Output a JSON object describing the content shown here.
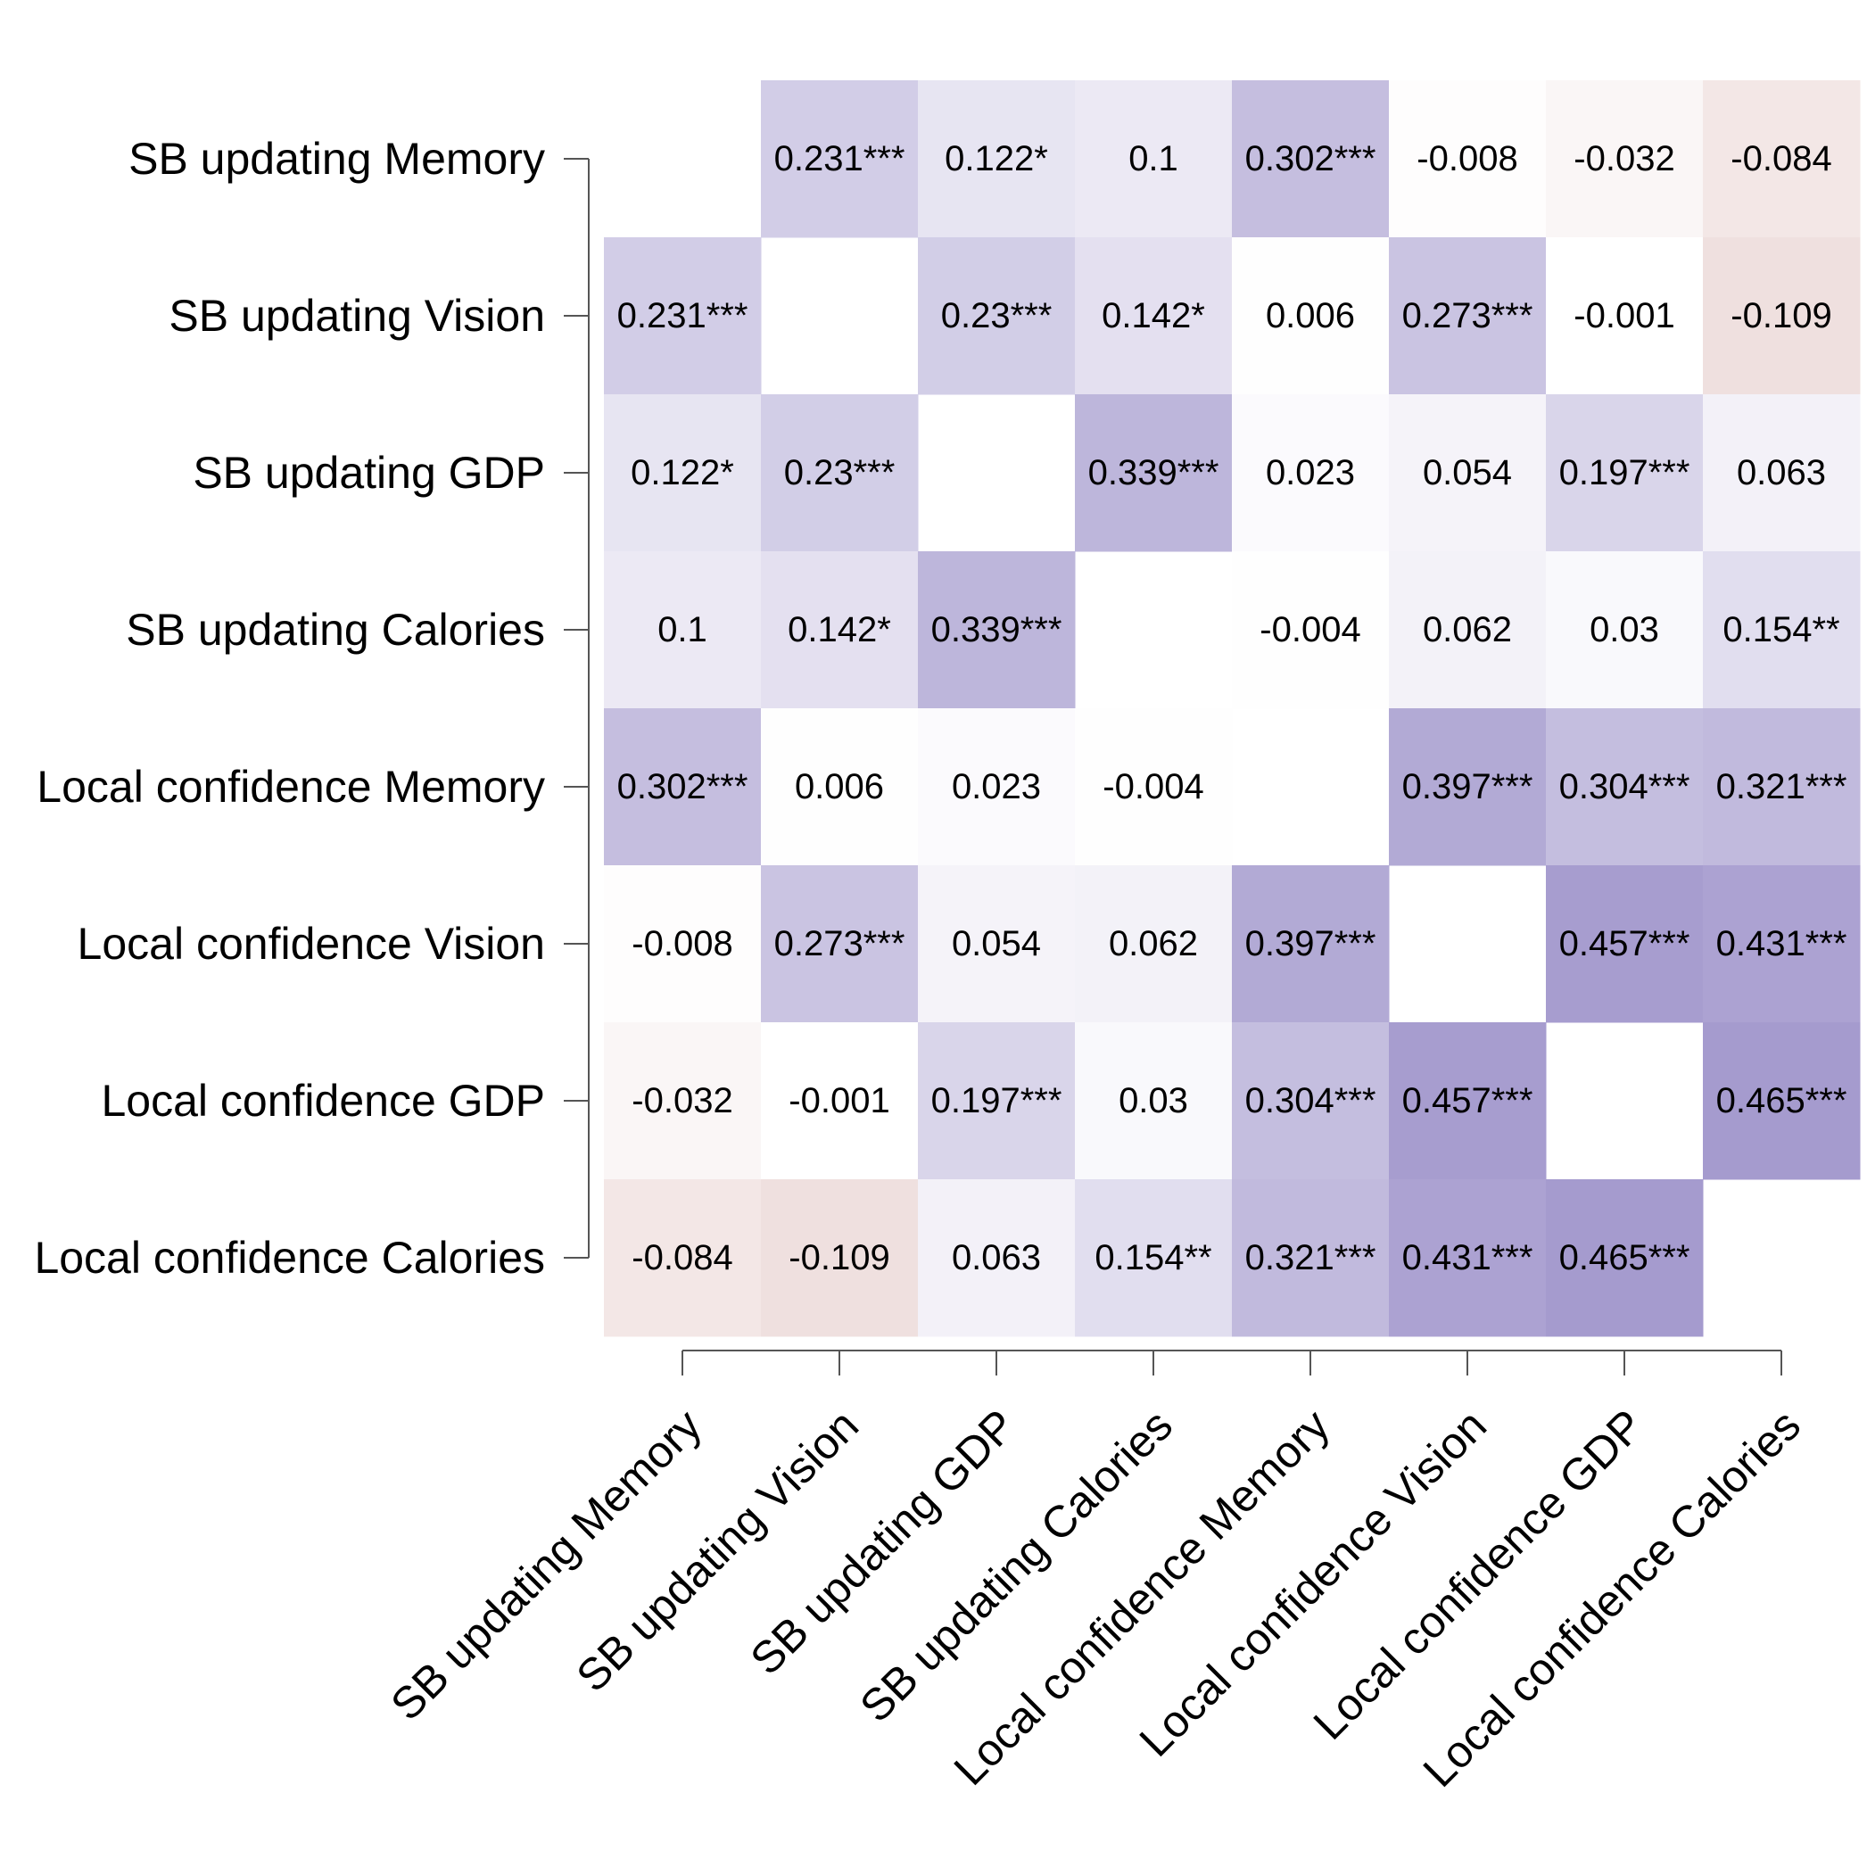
{
  "chart_data": {
    "type": "heatmap",
    "row_labels": [
      "SB updating Memory",
      "SB updating Vision",
      "SB updating GDP",
      "SB updating Calories",
      "Local confidence Memory",
      "Local confidence Vision",
      "Local confidence GDP",
      "Local confidence Calories"
    ],
    "column_labels": [
      "SB updating Memory",
      "SB updating Vision",
      "SB updating GDP",
      "SB updating Calories",
      "Local confidence Memory",
      "Local confidence Vision",
      "Local confidence GDP",
      "Local confidence Calories"
    ],
    "values": [
      [
        null,
        0.231,
        0.122,
        0.1,
        0.302,
        -0.008,
        -0.032,
        -0.084
      ],
      [
        0.231,
        null,
        0.23,
        0.142,
        0.006,
        0.273,
        -0.001,
        -0.109
      ],
      [
        0.122,
        0.23,
        null,
        0.339,
        0.023,
        0.054,
        0.197,
        0.063
      ],
      [
        0.1,
        0.142,
        0.339,
        null,
        -0.004,
        0.062,
        0.03,
        0.154
      ],
      [
        0.302,
        0.006,
        0.023,
        -0.004,
        null,
        0.397,
        0.304,
        0.321
      ],
      [
        -0.008,
        0.273,
        0.054,
        0.062,
        0.397,
        null,
        0.457,
        0.431
      ],
      [
        -0.032,
        -0.001,
        0.197,
        0.03,
        0.304,
        0.457,
        null,
        0.465
      ],
      [
        -0.084,
        -0.109,
        0.063,
        0.154,
        0.321,
        0.431,
        0.465,
        null
      ]
    ],
    "cell_labels": [
      [
        "",
        "0.231***",
        "0.122*",
        "0.1",
        "0.302***",
        "-0.008",
        "-0.032",
        "-0.084"
      ],
      [
        "0.231***",
        "",
        "0.23***",
        "0.142*",
        "0.006",
        "0.273***",
        "-0.001",
        "-0.109"
      ],
      [
        "0.122*",
        "0.23***",
        "",
        "0.339***",
        "0.023",
        "0.054",
        "0.197***",
        "0.063"
      ],
      [
        "0.1",
        "0.142*",
        "0.339***",
        "",
        "-0.004",
        "0.062",
        "0.03",
        "0.154**"
      ],
      [
        "0.302***",
        "0.006",
        "0.023",
        "-0.004",
        "",
        "0.397***",
        "0.304***",
        "0.321***"
      ],
      [
        "-0.008",
        "0.273***",
        "0.054",
        "0.062",
        "0.397***",
        "",
        "0.457***",
        "0.431***"
      ],
      [
        "-0.032",
        "-0.001",
        "0.197***",
        "0.03",
        "0.304***",
        "0.457***",
        "",
        "0.465***"
      ],
      [
        "-0.084",
        "-0.109",
        "0.063",
        "0.154**",
        "0.321***",
        "0.431***",
        "0.465***",
        ""
      ]
    ],
    "colors": {
      "positive": "#a59bce",
      "negative": "#efe0df",
      "neutral": "#ffffff"
    },
    "diagonal_blank": true,
    "grid": false,
    "legend": "none"
  }
}
